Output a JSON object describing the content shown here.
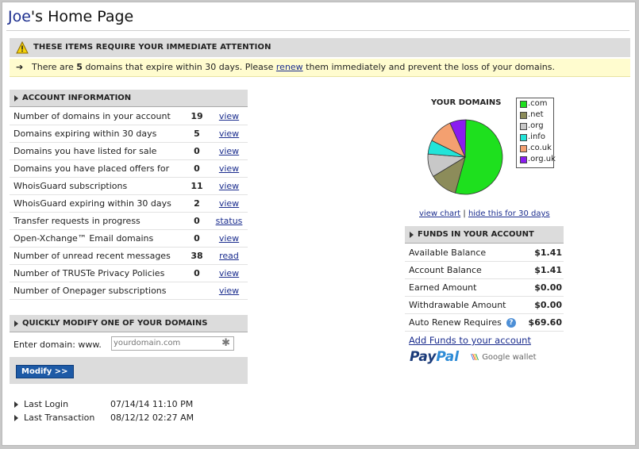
{
  "page": {
    "title_first": "Joe",
    "title_rest": "'s Home Page"
  },
  "attention": {
    "heading": "THESE ITEMS REQUIRE YOUR IMMEDIATE ATTENTION",
    "arrow_icon": "arrow-right-icon",
    "msg_before": "There are ",
    "count": "5",
    "msg_middle": " domains that expire within 30 days. Please ",
    "renew_link": "renew",
    "msg_after": " them immediately and prevent the loss of your domains."
  },
  "account": {
    "heading": "ACCOUNT INFORMATION",
    "rows": [
      {
        "label": "Number of domains in your account",
        "value": "19",
        "action": "view"
      },
      {
        "label": "Domains expiring within 30 days",
        "value": "5",
        "action": "view"
      },
      {
        "label": "Domains you have listed for sale",
        "value": "0",
        "action": "view"
      },
      {
        "label": "Domains you have placed offers for",
        "value": "0",
        "action": "view"
      },
      {
        "label": "WhoisGuard subscriptions",
        "value": "11",
        "action": "view"
      },
      {
        "label": "WhoisGuard expiring within 30 days",
        "value": "2",
        "action": "view"
      },
      {
        "label": "Transfer requests in progress",
        "value": "0",
        "action": "status"
      },
      {
        "label": "Open-Xchange™ Email domains",
        "value": "0",
        "action": "view"
      },
      {
        "label": "Number of unread recent messages",
        "value": "38",
        "action": "read"
      },
      {
        "label": "Number of TRUSTe Privacy Policies",
        "value": "0",
        "action": "view"
      },
      {
        "label": "Number of Onepager subscriptions",
        "value": "",
        "action": "view"
      }
    ]
  },
  "modify": {
    "heading": "QUICKLY MODIFY ONE OF YOUR DOMAINS",
    "enter_label": "Enter domain:  www.",
    "placeholder": "yourdomain.com",
    "button": "Modify >>"
  },
  "meta": {
    "last_login_label": "Last Login",
    "last_login_value": "07/14/14 11:10 PM",
    "last_tx_label": "Last Transaction",
    "last_tx_value": "08/12/12 02:27 AM"
  },
  "chart_data": {
    "type": "pie",
    "title": "YOUR DOMAINS",
    "categories": [
      ".com",
      ".net",
      ".org",
      ".info",
      ".co.uk",
      ".org.uk"
    ],
    "values": [
      54,
      12,
      10,
      6,
      11,
      7
    ],
    "colors": [
      "#1ee01e",
      "#8c8c5a",
      "#c8c8c8",
      "#22e4d8",
      "#f4a070",
      "#8a1cf0"
    ],
    "legend_position": "right"
  },
  "chart_links": {
    "view": "view chart",
    "sep": " | ",
    "hide": "hide this for 30 days"
  },
  "funds": {
    "heading": "FUNDS IN YOUR ACCOUNT",
    "rows": [
      {
        "label": "Available Balance",
        "value": "$1.41"
      },
      {
        "label": "Account Balance",
        "value": "$1.41"
      },
      {
        "label": "Earned Amount",
        "value": "$0.00"
      },
      {
        "label": "Withdrawable Amount",
        "value": "$0.00"
      },
      {
        "label": "Auto Renew Requires",
        "value": "$69.60",
        "help": "?"
      }
    ],
    "add_link": "Add Funds to your account",
    "paypal_a": "Pay",
    "paypal_b": "Pal",
    "google_wallet": "Google wallet"
  }
}
